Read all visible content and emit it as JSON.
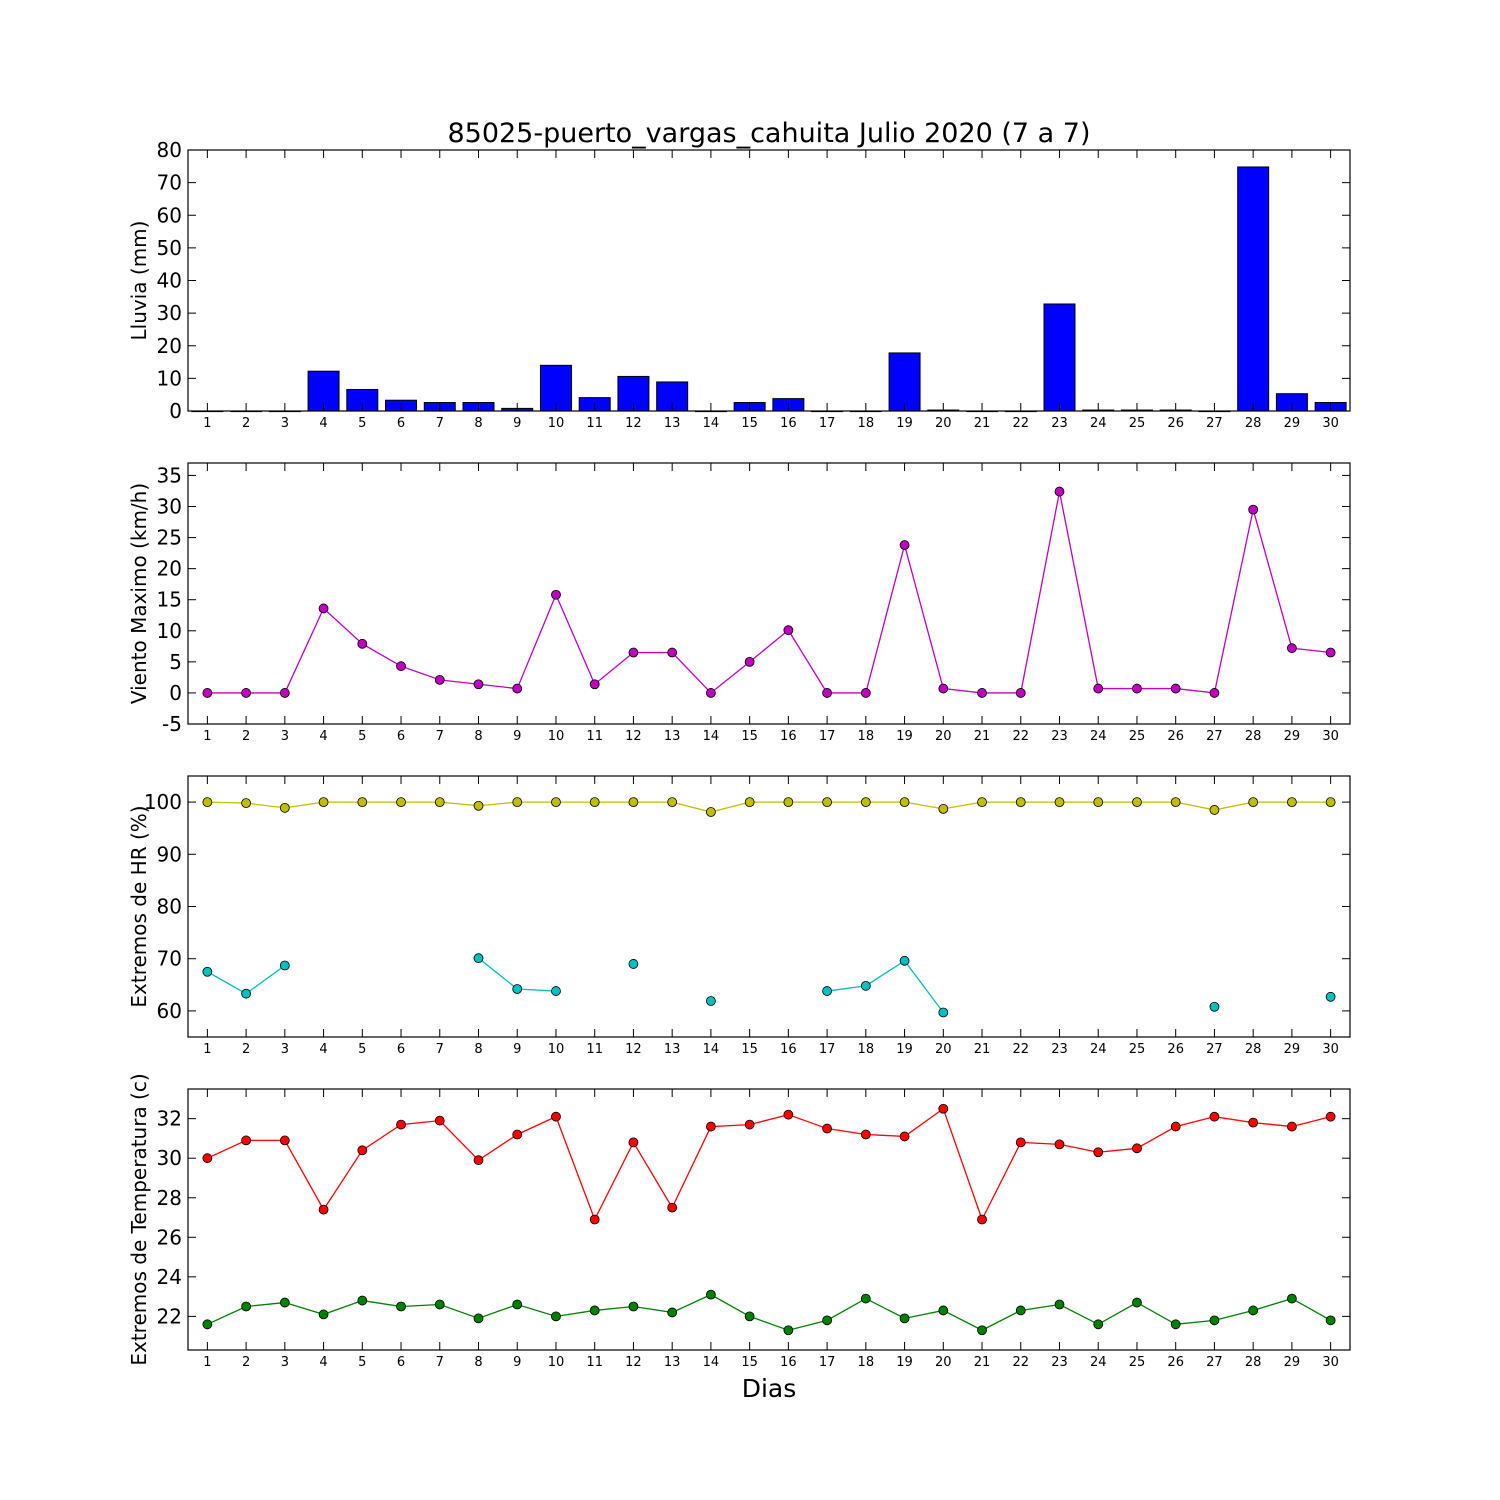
{
  "figure": {
    "title": "85025-puerto_vargas_cahuita Julio 2020  (7 a 7)",
    "xlabel": "Dias"
  },
  "chart_data": [
    {
      "type": "bar",
      "ylabel": "Lluvia (mm)",
      "ylim": [
        0,
        80
      ],
      "yticks": [
        0,
        10,
        20,
        30,
        40,
        50,
        60,
        70,
        80
      ],
      "x": [
        1,
        2,
        3,
        4,
        5,
        6,
        7,
        8,
        9,
        10,
        11,
        12,
        13,
        14,
        15,
        16,
        17,
        18,
        19,
        20,
        21,
        22,
        23,
        24,
        25,
        26,
        27,
        28,
        29,
        30
      ],
      "xlim": [
        0.5,
        30.5
      ],
      "grid": false,
      "series": [
        {
          "color": "#0000ff",
          "values": [
            0,
            0,
            0,
            12.2,
            6.6,
            3.3,
            2.6,
            2.6,
            0.8,
            14.0,
            4.1,
            10.6,
            8.9,
            0,
            2.6,
            3.8,
            0,
            0,
            17.8,
            0.3,
            0,
            0,
            32.8,
            0.3,
            0.3,
            0.3,
            0,
            74.8,
            5.3,
            2.6
          ]
        }
      ]
    },
    {
      "type": "line",
      "ylabel": "Viento Maximo (km/h)",
      "ylim": [
        -5,
        37
      ],
      "yticks": [
        -5,
        0,
        5,
        10,
        15,
        20,
        25,
        30,
        35
      ],
      "x": [
        1,
        2,
        3,
        4,
        5,
        6,
        7,
        8,
        9,
        10,
        11,
        12,
        13,
        14,
        15,
        16,
        17,
        18,
        19,
        20,
        21,
        22,
        23,
        24,
        25,
        26,
        27,
        28,
        29,
        30
      ],
      "xlim": [
        0.5,
        30.5
      ],
      "grid": false,
      "series": [
        {
          "color": "#bf00bf",
          "values": [
            0,
            0,
            0,
            13.6,
            7.9,
            4.3,
            2.1,
            1.4,
            0.7,
            15.8,
            1.4,
            6.5,
            6.5,
            0,
            5.0,
            10.1,
            0,
            0,
            23.8,
            0.7,
            0,
            0,
            32.4,
            0.7,
            0.7,
            0.7,
            0,
            29.5,
            7.2,
            6.5
          ]
        }
      ]
    },
    {
      "type": "line",
      "ylabel": "Extremos de HR (%)",
      "ylim": [
        55,
        105
      ],
      "yticks": [
        60,
        70,
        80,
        90,
        100
      ],
      "x": [
        1,
        2,
        3,
        4,
        5,
        6,
        7,
        8,
        9,
        10,
        11,
        12,
        13,
        14,
        15,
        16,
        17,
        18,
        19,
        20,
        21,
        22,
        23,
        24,
        25,
        26,
        27,
        28,
        29,
        30
      ],
      "xlim": [
        0.5,
        30.5
      ],
      "grid": false,
      "series": [
        {
          "color": "#bfbf00",
          "values": [
            100,
            99.8,
            98.9,
            100,
            100,
            100,
            100,
            99.3,
            100,
            100,
            100,
            100,
            100,
            98.1,
            100,
            100,
            100,
            100,
            100,
            98.7,
            100,
            100,
            100,
            100,
            100,
            100,
            98.5,
            100,
            100,
            100
          ]
        },
        {
          "color": "#00bfbf",
          "values": [
            67.5,
            63.3,
            68.7,
            null,
            null,
            null,
            null,
            70.1,
            64.2,
            63.8,
            null,
            69.0,
            null,
            61.9,
            null,
            null,
            63.8,
            64.8,
            69.6,
            59.7,
            null,
            null,
            null,
            null,
            null,
            null,
            60.8,
            null,
            null,
            62.7
          ]
        }
      ]
    },
    {
      "type": "line",
      "ylabel": "Extremos de Temperatura (c)",
      "ylim": [
        20.3,
        33.5
      ],
      "yticks": [
        22,
        24,
        26,
        28,
        30,
        32
      ],
      "x": [
        1,
        2,
        3,
        4,
        5,
        6,
        7,
        8,
        9,
        10,
        11,
        12,
        13,
        14,
        15,
        16,
        17,
        18,
        19,
        20,
        21,
        22,
        23,
        24,
        25,
        26,
        27,
        28,
        29,
        30
      ],
      "xlim": [
        0.5,
        30.5
      ],
      "grid": false,
      "series": [
        {
          "color": "#ff0000",
          "values": [
            30.0,
            30.9,
            30.9,
            27.4,
            30.4,
            31.7,
            31.9,
            29.9,
            31.2,
            32.1,
            26.9,
            30.8,
            27.5,
            31.6,
            31.7,
            32.2,
            31.5,
            31.2,
            31.1,
            32.5,
            26.9,
            30.8,
            30.7,
            30.3,
            30.5,
            31.6,
            32.1,
            31.8,
            31.6,
            32.1
          ]
        },
        {
          "color": "#008000",
          "values": [
            21.6,
            22.5,
            22.7,
            22.1,
            22.8,
            22.5,
            22.6,
            21.9,
            22.6,
            22.0,
            22.3,
            22.5,
            22.2,
            23.1,
            22.0,
            21.3,
            21.8,
            22.9,
            21.9,
            22.3,
            21.3,
            22.3,
            22.6,
            21.6,
            22.7,
            21.6,
            21.8,
            22.3,
            22.9,
            21.8
          ]
        }
      ]
    }
  ]
}
